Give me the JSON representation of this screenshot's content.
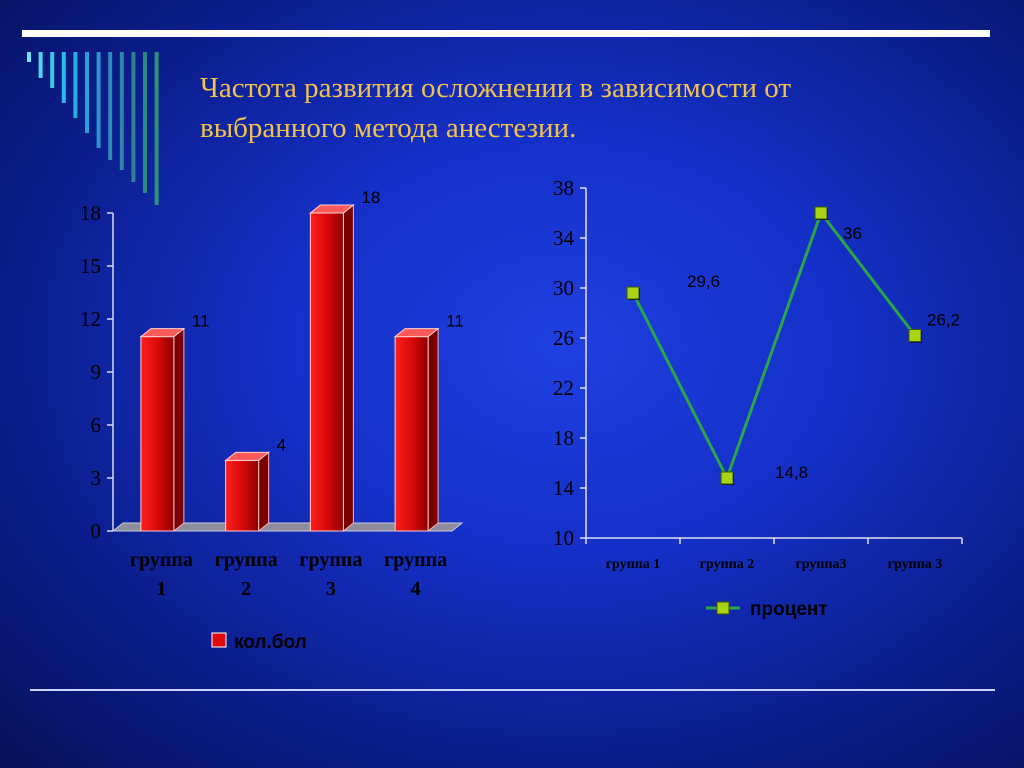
{
  "slide": {
    "title": "Частота развития осложнении в зависимости от выбранного метода анестезии.",
    "colors": {
      "title": "#f2c14a",
      "bar": "#e10a0a",
      "line": "#2aa548",
      "marker": "#a9d313",
      "background": "#1530c8"
    }
  },
  "chart_data": [
    {
      "type": "bar",
      "categories": [
        "группа 1",
        "группа 2",
        "группа 3",
        "группа 4"
      ],
      "category_lines": [
        [
          "группа",
          "1"
        ],
        [
          "группа",
          "2"
        ],
        [
          "группа",
          "3"
        ],
        [
          "группа",
          "4"
        ]
      ],
      "series": [
        {
          "name": "кол.бол",
          "values": [
            11,
            4,
            18,
            11
          ]
        }
      ],
      "data_labels": [
        "11",
        "4",
        "18",
        "11"
      ],
      "yticks": [
        "0",
        "3",
        "6",
        "9",
        "12",
        "15",
        "18"
      ],
      "ylim": [
        0,
        18
      ],
      "grid": false,
      "style": "3d",
      "legend": "bottom"
    },
    {
      "type": "line",
      "categories": [
        "группа 1",
        "группа 2",
        "группа3",
        "группа 3"
      ],
      "series": [
        {
          "name": "процент",
          "values": [
            29.6,
            14.8,
            36,
            26.2
          ]
        }
      ],
      "data_labels": [
        "29,6",
        "14,8",
        "36",
        "26,2"
      ],
      "yticks": [
        "10",
        "14",
        "18",
        "22",
        "26",
        "30",
        "34",
        "38"
      ],
      "ylim": [
        10,
        38
      ],
      "grid": false,
      "legend": "bottom"
    }
  ]
}
